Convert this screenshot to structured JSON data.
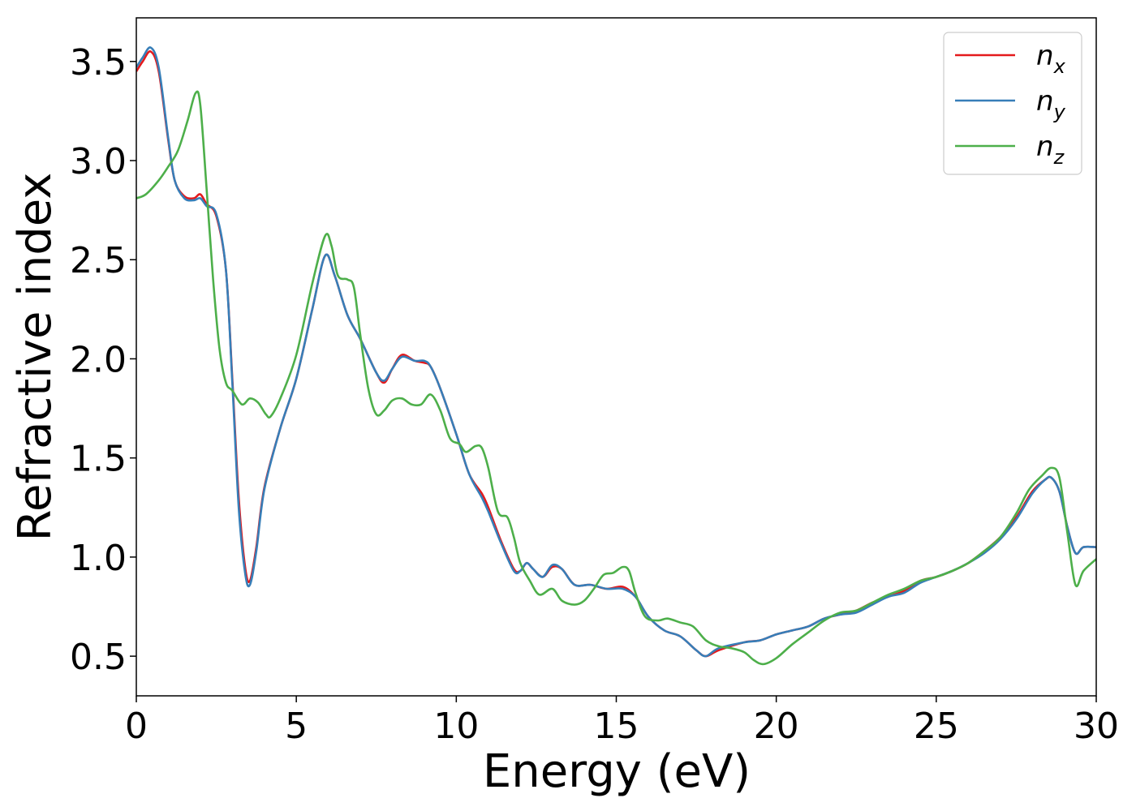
{
  "chart_data": {
    "type": "line",
    "title": "",
    "xlabel": "Energy (eV)",
    "ylabel": "Refractive index",
    "xlim": [
      0,
      30
    ],
    "ylim": [
      0.3,
      3.72
    ],
    "xticks": [
      0,
      5,
      10,
      15,
      20,
      25,
      30
    ],
    "xtick_labels": [
      "0",
      "5",
      "10",
      "15",
      "20",
      "25",
      "30"
    ],
    "yticks": [
      0.5,
      1.0,
      1.5,
      2.0,
      2.5,
      3.0,
      3.5
    ],
    "ytick_labels": [
      "0.5",
      "1.0",
      "1.5",
      "2.0",
      "2.5",
      "3.0",
      "3.5"
    ],
    "grid": false,
    "legend_position": "top-right",
    "series": [
      {
        "name": "n_x",
        "label_base": "n",
        "label_sub": "x",
        "color": "#e41a1c",
        "points": [
          [
            0,
            3.45
          ],
          [
            0.2,
            3.5
          ],
          [
            0.45,
            3.55
          ],
          [
            0.7,
            3.45
          ],
          [
            1.0,
            3.1
          ],
          [
            1.2,
            2.9
          ],
          [
            1.5,
            2.82
          ],
          [
            1.8,
            2.81
          ],
          [
            2.0,
            2.83
          ],
          [
            2.2,
            2.78
          ],
          [
            2.5,
            2.72
          ],
          [
            2.8,
            2.45
          ],
          [
            3.0,
            1.9
          ],
          [
            3.2,
            1.3
          ],
          [
            3.4,
            0.95
          ],
          [
            3.55,
            0.88
          ],
          [
            3.75,
            1.05
          ],
          [
            4.0,
            1.35
          ],
          [
            4.5,
            1.65
          ],
          [
            5.0,
            1.9
          ],
          [
            5.5,
            2.25
          ],
          [
            5.9,
            2.52
          ],
          [
            6.2,
            2.42
          ],
          [
            6.6,
            2.22
          ],
          [
            7.0,
            2.1
          ],
          [
            7.5,
            1.93
          ],
          [
            7.75,
            1.88
          ],
          [
            8.0,
            1.95
          ],
          [
            8.3,
            2.02
          ],
          [
            8.7,
            1.99
          ],
          [
            9.0,
            1.98
          ],
          [
            9.2,
            1.96
          ],
          [
            9.5,
            1.85
          ],
          [
            10.0,
            1.62
          ],
          [
            10.4,
            1.42
          ],
          [
            10.8,
            1.32
          ],
          [
            11.0,
            1.25
          ],
          [
            11.4,
            1.08
          ],
          [
            11.8,
            0.94
          ],
          [
            12.0,
            0.93
          ],
          [
            12.2,
            0.97
          ],
          [
            12.4,
            0.94
          ],
          [
            12.7,
            0.9
          ],
          [
            13.0,
            0.95
          ],
          [
            13.3,
            0.94
          ],
          [
            13.7,
            0.86
          ],
          [
            14.2,
            0.86
          ],
          [
            14.7,
            0.84
          ],
          [
            15.2,
            0.85
          ],
          [
            15.6,
            0.8
          ],
          [
            16.0,
            0.7
          ],
          [
            16.5,
            0.63
          ],
          [
            17.0,
            0.6
          ],
          [
            17.5,
            0.53
          ],
          [
            17.8,
            0.5
          ],
          [
            18.2,
            0.53
          ],
          [
            19.0,
            0.57
          ],
          [
            19.5,
            0.58
          ],
          [
            20.0,
            0.61
          ],
          [
            20.5,
            0.63
          ],
          [
            21.0,
            0.65
          ],
          [
            21.5,
            0.69
          ],
          [
            22.0,
            0.71
          ],
          [
            22.5,
            0.73
          ],
          [
            23.0,
            0.77
          ],
          [
            23.5,
            0.8
          ],
          [
            24.0,
            0.83
          ],
          [
            24.5,
            0.88
          ],
          [
            25.0,
            0.9
          ],
          [
            25.5,
            0.93
          ],
          [
            26.0,
            0.97
          ],
          [
            26.5,
            1.03
          ],
          [
            27.0,
            1.1
          ],
          [
            27.5,
            1.2
          ],
          [
            28.0,
            1.33
          ],
          [
            28.4,
            1.39
          ],
          [
            28.6,
            1.4
          ],
          [
            28.85,
            1.33
          ],
          [
            29.1,
            1.15
          ],
          [
            29.35,
            1.02
          ],
          [
            29.6,
            1.05
          ],
          [
            30.0,
            1.05
          ]
        ]
      },
      {
        "name": "n_y",
        "label_base": "n",
        "label_sub": "y",
        "color": "#377eb8",
        "points": [
          [
            0,
            3.47
          ],
          [
            0.2,
            3.52
          ],
          [
            0.45,
            3.57
          ],
          [
            0.7,
            3.47
          ],
          [
            1.0,
            3.11
          ],
          [
            1.2,
            2.9
          ],
          [
            1.5,
            2.81
          ],
          [
            1.8,
            2.8
          ],
          [
            2.0,
            2.81
          ],
          [
            2.2,
            2.77
          ],
          [
            2.5,
            2.73
          ],
          [
            2.8,
            2.45
          ],
          [
            3.0,
            1.88
          ],
          [
            3.2,
            1.25
          ],
          [
            3.4,
            0.92
          ],
          [
            3.55,
            0.86
          ],
          [
            3.75,
            1.03
          ],
          [
            4.0,
            1.34
          ],
          [
            4.5,
            1.65
          ],
          [
            5.0,
            1.9
          ],
          [
            5.5,
            2.25
          ],
          [
            5.9,
            2.52
          ],
          [
            6.2,
            2.42
          ],
          [
            6.6,
            2.22
          ],
          [
            7.0,
            2.1
          ],
          [
            7.5,
            1.93
          ],
          [
            7.75,
            1.89
          ],
          [
            8.0,
            1.95
          ],
          [
            8.3,
            2.01
          ],
          [
            8.7,
            1.99
          ],
          [
            9.0,
            1.99
          ],
          [
            9.2,
            1.96
          ],
          [
            9.5,
            1.85
          ],
          [
            10.0,
            1.62
          ],
          [
            10.4,
            1.42
          ],
          [
            10.8,
            1.3
          ],
          [
            11.0,
            1.23
          ],
          [
            11.4,
            1.07
          ],
          [
            11.8,
            0.93
          ],
          [
            12.0,
            0.93
          ],
          [
            12.2,
            0.97
          ],
          [
            12.4,
            0.94
          ],
          [
            12.7,
            0.9
          ],
          [
            13.0,
            0.96
          ],
          [
            13.3,
            0.94
          ],
          [
            13.7,
            0.86
          ],
          [
            14.2,
            0.86
          ],
          [
            14.7,
            0.84
          ],
          [
            15.2,
            0.84
          ],
          [
            15.6,
            0.8
          ],
          [
            16.0,
            0.7
          ],
          [
            16.5,
            0.63
          ],
          [
            17.0,
            0.6
          ],
          [
            17.5,
            0.53
          ],
          [
            17.8,
            0.5
          ],
          [
            18.2,
            0.54
          ],
          [
            19.0,
            0.57
          ],
          [
            19.5,
            0.58
          ],
          [
            20.0,
            0.61
          ],
          [
            20.5,
            0.63
          ],
          [
            21.0,
            0.65
          ],
          [
            21.5,
            0.69
          ],
          [
            22.0,
            0.71
          ],
          [
            22.5,
            0.72
          ],
          [
            23.0,
            0.76
          ],
          [
            23.5,
            0.8
          ],
          [
            24.0,
            0.82
          ],
          [
            24.5,
            0.87
          ],
          [
            25.0,
            0.9
          ],
          [
            25.5,
            0.93
          ],
          [
            26.0,
            0.97
          ],
          [
            26.5,
            1.02
          ],
          [
            27.0,
            1.09
          ],
          [
            27.5,
            1.19
          ],
          [
            28.0,
            1.32
          ],
          [
            28.4,
            1.39
          ],
          [
            28.6,
            1.4
          ],
          [
            28.85,
            1.33
          ],
          [
            29.1,
            1.15
          ],
          [
            29.35,
            1.02
          ],
          [
            29.6,
            1.05
          ],
          [
            30.0,
            1.05
          ]
        ]
      },
      {
        "name": "n_z",
        "label_base": "n",
        "label_sub": "z",
        "color": "#4daf4a",
        "points": [
          [
            0,
            2.81
          ],
          [
            0.3,
            2.83
          ],
          [
            0.7,
            2.9
          ],
          [
            1.0,
            2.97
          ],
          [
            1.3,
            3.05
          ],
          [
            1.6,
            3.2
          ],
          [
            1.85,
            3.34
          ],
          [
            2.0,
            3.28
          ],
          [
            2.2,
            2.85
          ],
          [
            2.4,
            2.4
          ],
          [
            2.6,
            2.05
          ],
          [
            2.8,
            1.88
          ],
          [
            3.0,
            1.84
          ],
          [
            3.3,
            1.77
          ],
          [
            3.55,
            1.8
          ],
          [
            3.8,
            1.78
          ],
          [
            4.05,
            1.72
          ],
          [
            4.2,
            1.71
          ],
          [
            4.5,
            1.8
          ],
          [
            5.0,
            2.02
          ],
          [
            5.5,
            2.38
          ],
          [
            5.9,
            2.62
          ],
          [
            6.1,
            2.57
          ],
          [
            6.3,
            2.42
          ],
          [
            6.6,
            2.4
          ],
          [
            6.8,
            2.36
          ],
          [
            7.0,
            2.12
          ],
          [
            7.25,
            1.85
          ],
          [
            7.5,
            1.72
          ],
          [
            7.75,
            1.74
          ],
          [
            8.0,
            1.79
          ],
          [
            8.3,
            1.8
          ],
          [
            8.6,
            1.77
          ],
          [
            8.9,
            1.77
          ],
          [
            9.2,
            1.82
          ],
          [
            9.5,
            1.74
          ],
          [
            9.8,
            1.6
          ],
          [
            10.1,
            1.57
          ],
          [
            10.3,
            1.53
          ],
          [
            10.6,
            1.56
          ],
          [
            10.8,
            1.55
          ],
          [
            11.0,
            1.45
          ],
          [
            11.3,
            1.23
          ],
          [
            11.6,
            1.2
          ],
          [
            11.8,
            1.1
          ],
          [
            12.0,
            0.97
          ],
          [
            12.3,
            0.88
          ],
          [
            12.6,
            0.81
          ],
          [
            13.0,
            0.84
          ],
          [
            13.3,
            0.78
          ],
          [
            13.7,
            0.76
          ],
          [
            14.0,
            0.78
          ],
          [
            14.3,
            0.84
          ],
          [
            14.6,
            0.91
          ],
          [
            14.9,
            0.92
          ],
          [
            15.2,
            0.95
          ],
          [
            15.4,
            0.93
          ],
          [
            15.6,
            0.82
          ],
          [
            15.9,
            0.7
          ],
          [
            16.3,
            0.68
          ],
          [
            16.6,
            0.69
          ],
          [
            17.0,
            0.67
          ],
          [
            17.4,
            0.65
          ],
          [
            17.8,
            0.58
          ],
          [
            18.2,
            0.55
          ],
          [
            18.6,
            0.54
          ],
          [
            19.0,
            0.52
          ],
          [
            19.3,
            0.48
          ],
          [
            19.6,
            0.46
          ],
          [
            20.0,
            0.49
          ],
          [
            20.5,
            0.56
          ],
          [
            21.0,
            0.62
          ],
          [
            21.5,
            0.68
          ],
          [
            22.0,
            0.72
          ],
          [
            22.5,
            0.73
          ],
          [
            23.0,
            0.77
          ],
          [
            23.5,
            0.81
          ],
          [
            24.0,
            0.84
          ],
          [
            24.5,
            0.88
          ],
          [
            25.0,
            0.9
          ],
          [
            25.5,
            0.93
          ],
          [
            26.0,
            0.97
          ],
          [
            26.5,
            1.03
          ],
          [
            27.0,
            1.1
          ],
          [
            27.5,
            1.22
          ],
          [
            27.9,
            1.34
          ],
          [
            28.3,
            1.41
          ],
          [
            28.6,
            1.45
          ],
          [
            28.85,
            1.4
          ],
          [
            29.1,
            1.12
          ],
          [
            29.35,
            0.86
          ],
          [
            29.6,
            0.93
          ],
          [
            30.0,
            0.99
          ]
        ]
      }
    ]
  }
}
